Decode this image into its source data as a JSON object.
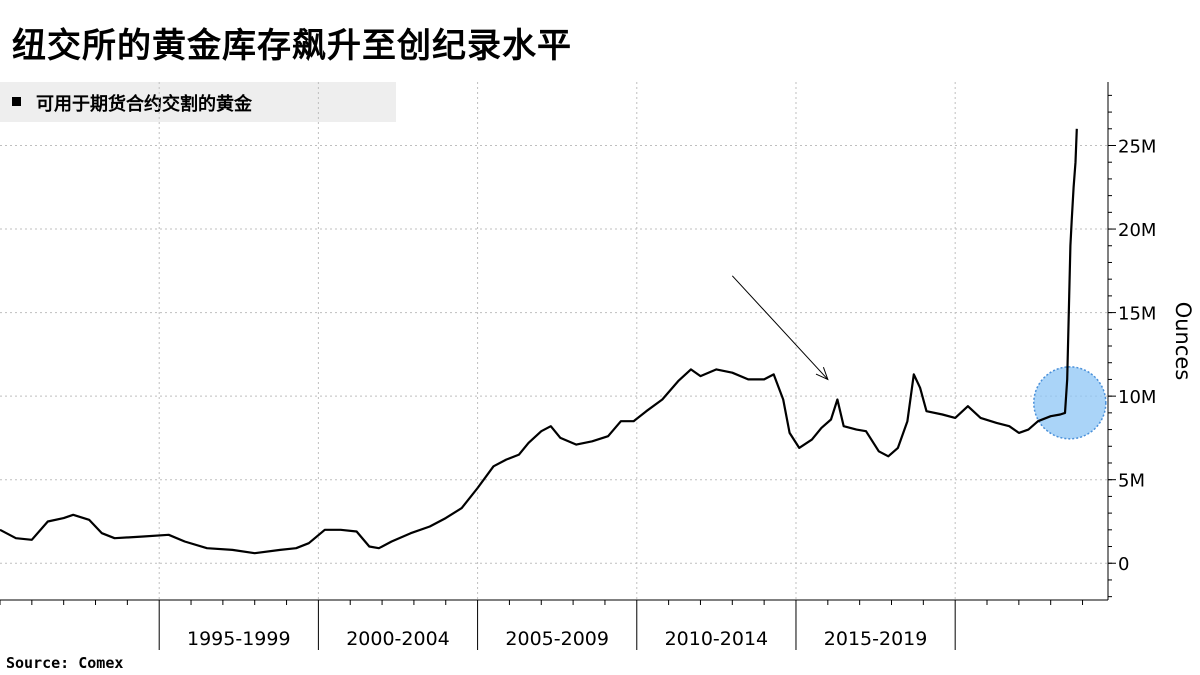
{
  "title": "纽交所的黄金库存飙升至创纪录水平",
  "source": "Source: Comex",
  "colors": {
    "line": "#000000",
    "grid": "#bfbfbf",
    "highlight": "#8ec5f5",
    "highlight_stroke": "#4a90d9"
  },
  "chart_data": {
    "type": "line",
    "series": [
      {
        "name": "可用于期货合约交割的黄金",
        "points": [
          [
            1990.0,
            2.0
          ],
          [
            1990.5,
            1.5
          ],
          [
            1991.0,
            1.4
          ],
          [
            1991.5,
            2.5
          ],
          [
            1992.0,
            2.7
          ],
          [
            1992.3,
            2.9
          ],
          [
            1992.8,
            2.6
          ],
          [
            1993.2,
            1.8
          ],
          [
            1993.6,
            1.5
          ],
          [
            1994.5,
            1.6
          ],
          [
            1995.3,
            1.7
          ],
          [
            1995.8,
            1.3
          ],
          [
            1996.5,
            0.9
          ],
          [
            1997.3,
            0.8
          ],
          [
            1998.0,
            0.6
          ],
          [
            1998.8,
            0.8
          ],
          [
            1999.3,
            0.9
          ],
          [
            1999.7,
            1.2
          ],
          [
            2000.2,
            2.0
          ],
          [
            2000.7,
            2.0
          ],
          [
            2001.2,
            1.9
          ],
          [
            2001.6,
            1.0
          ],
          [
            2001.9,
            0.9
          ],
          [
            2002.3,
            1.3
          ],
          [
            2002.9,
            1.8
          ],
          [
            2003.5,
            2.2
          ],
          [
            2004.0,
            2.7
          ],
          [
            2004.5,
            3.3
          ],
          [
            2005.0,
            4.5
          ],
          [
            2005.5,
            5.8
          ],
          [
            2005.9,
            6.2
          ],
          [
            2006.3,
            6.5
          ],
          [
            2006.6,
            7.2
          ],
          [
            2007.0,
            7.9
          ],
          [
            2007.3,
            8.2
          ],
          [
            2007.6,
            7.5
          ],
          [
            2008.1,
            7.1
          ],
          [
            2008.6,
            7.3
          ],
          [
            2009.1,
            7.6
          ],
          [
            2009.5,
            8.5
          ],
          [
            2009.9,
            8.5
          ],
          [
            2010.3,
            9.1
          ],
          [
            2010.8,
            9.8
          ],
          [
            2011.3,
            10.9
          ],
          [
            2011.7,
            11.6
          ],
          [
            2012.0,
            11.2
          ],
          [
            2012.5,
            11.6
          ],
          [
            2013.0,
            11.4
          ],
          [
            2013.5,
            11.0
          ],
          [
            2014.0,
            11.0
          ],
          [
            2014.3,
            11.3
          ],
          [
            2014.6,
            9.8
          ],
          [
            2014.8,
            7.8
          ],
          [
            2015.1,
            6.9
          ],
          [
            2015.5,
            7.4
          ],
          [
            2015.8,
            8.1
          ],
          [
            2016.1,
            8.6
          ],
          [
            2016.3,
            9.8
          ],
          [
            2016.5,
            8.2
          ],
          [
            2016.9,
            8.0
          ],
          [
            2017.2,
            7.9
          ],
          [
            2017.6,
            6.7
          ],
          [
            2017.9,
            6.4
          ],
          [
            2018.2,
            6.9
          ],
          [
            2018.5,
            8.5
          ],
          [
            2018.7,
            11.3
          ],
          [
            2018.9,
            10.5
          ],
          [
            2019.1,
            9.1
          ],
          [
            2019.6,
            8.9
          ],
          [
            2020.0,
            8.7
          ],
          [
            2020.4,
            9.4
          ],
          [
            2020.8,
            8.7
          ],
          [
            2021.3,
            8.4
          ],
          [
            2021.7,
            8.2
          ],
          [
            2022.0,
            7.8
          ],
          [
            2022.3,
            8.0
          ],
          [
            2022.6,
            8.5
          ],
          [
            2023.0,
            8.8
          ],
          [
            2023.3,
            8.9
          ],
          [
            2023.45,
            9.0
          ],
          [
            2023.52,
            11.0
          ],
          [
            2023.58,
            16.0
          ],
          [
            2023.62,
            19.0
          ],
          [
            2023.66,
            20.5
          ],
          [
            2023.72,
            22.5
          ],
          [
            2023.78,
            24.0
          ],
          [
            2023.82,
            26.0
          ]
        ]
      }
    ],
    "x_axis": {
      "range": [
        1990.0,
        2024.8
      ],
      "tick_positions": [
        1995,
        2000,
        2005,
        2010,
        2015,
        2020
      ],
      "period_labels": [
        {
          "start": 1995,
          "end": 2000,
          "label": "1995-1999"
        },
        {
          "start": 2000,
          "end": 2005,
          "label": "2000-2004"
        },
        {
          "start": 2005,
          "end": 2010,
          "label": "2005-2009"
        },
        {
          "start": 2010,
          "end": 2015,
          "label": "2010-2014"
        },
        {
          "start": 2015,
          "end": 2020,
          "label": "2015-2019"
        }
      ],
      "minor_ticks": [
        1990,
        1991,
        1992,
        1993,
        1994,
        1996,
        1997,
        1998,
        1999,
        2001,
        2002,
        2003,
        2004,
        2006,
        2007,
        2008,
        2009,
        2011,
        2012,
        2013,
        2014,
        2016,
        2017,
        2018,
        2019,
        2021,
        2022,
        2023,
        2024
      ]
    },
    "y_axis": {
      "label": "Ounces",
      "range": [
        -2.2,
        28.8
      ],
      "ticks": [
        0,
        5,
        10,
        15,
        20,
        25
      ],
      "tick_labels": [
        "0",
        "5M",
        "10M",
        "15M",
        "20M",
        "25M"
      ],
      "position": "right"
    },
    "grid": true,
    "legend": {
      "position": "top-left"
    },
    "annotations": [
      {
        "type": "highlight-circle",
        "x": 2023.6,
        "y": 9.6
      },
      {
        "type": "arrow",
        "from": [
          2013.0,
          17.2
        ],
        "to": [
          2016.0,
          11.0
        ]
      }
    ]
  }
}
